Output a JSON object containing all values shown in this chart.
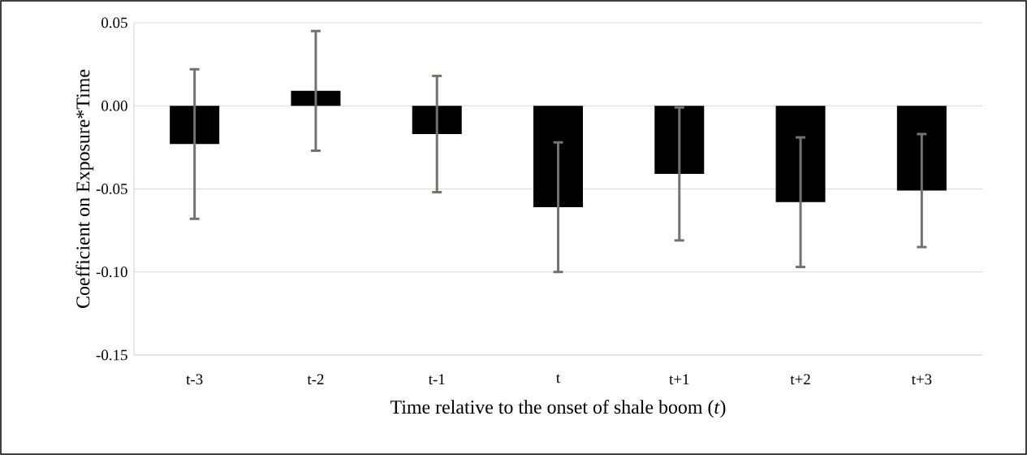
{
  "chart_data": {
    "type": "bar",
    "xlabel": "Time relative to the onset of shale boom (*t*)",
    "ylabel": "Coefficient on Exposure*Time",
    "categories": [
      "t-3",
      "t-2",
      "t-1",
      "t",
      "t+1",
      "t+2",
      "t+3"
    ],
    "values": [
      -0.023,
      0.009,
      -0.017,
      -0.061,
      -0.041,
      -0.058,
      -0.051
    ],
    "errors": [
      0.045,
      0.036,
      0.035,
      0.039,
      0.04,
      0.039,
      0.034
    ],
    "color": "#000000",
    "ylim": [
      -0.15,
      0.05
    ],
    "yticks": [
      {
        "value": -0.15,
        "label": "-0.15"
      },
      {
        "value": -0.1,
        "label": "-0.10"
      },
      {
        "value": -0.05,
        "label": "-0.05"
      },
      {
        "value": 0,
        "label": "0.00"
      },
      {
        "value": 0.05,
        "label": "0.05"
      }
    ],
    "grid": "y"
  }
}
